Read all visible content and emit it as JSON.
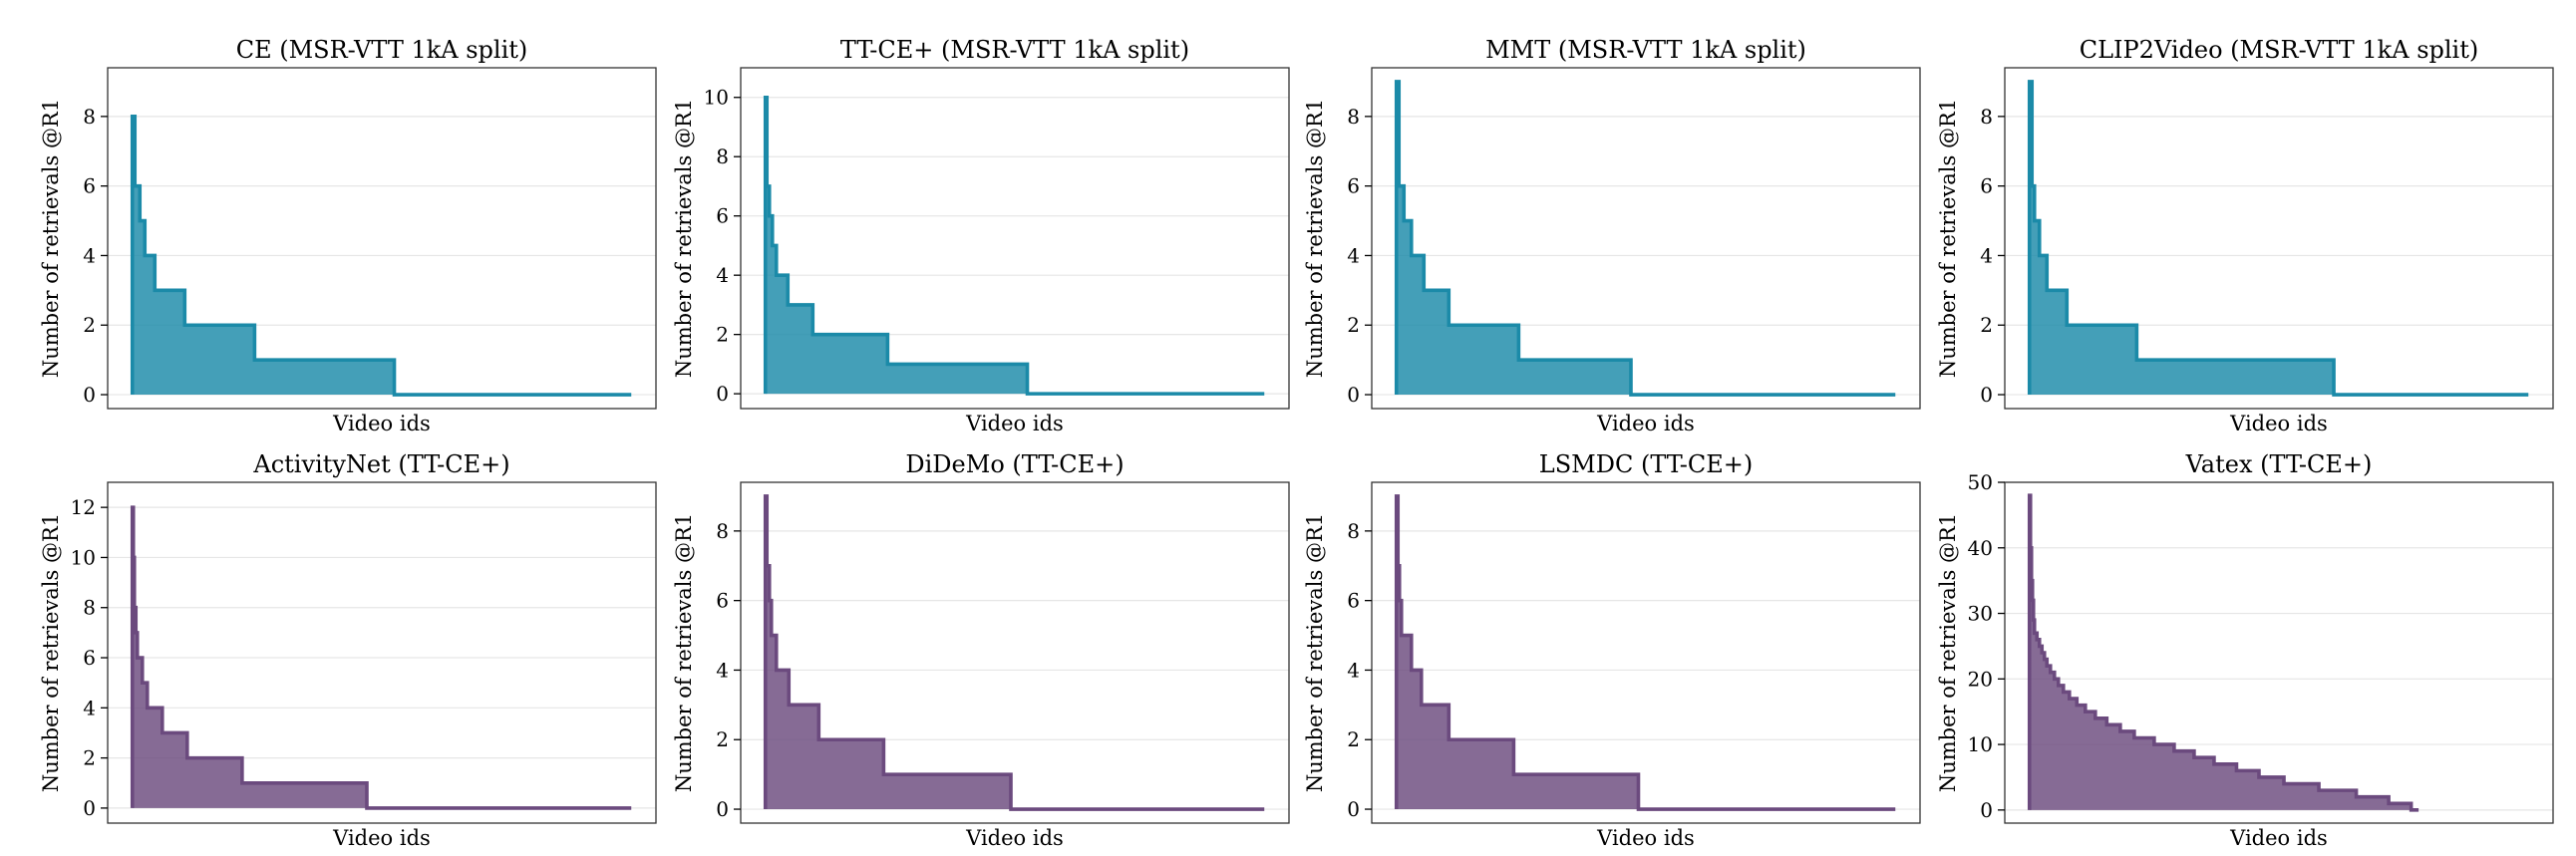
{
  "colors": {
    "teal": "#1b8aa8",
    "purple": "#6b4a7e"
  },
  "chart_data": [
    {
      "type": "area",
      "title": "CE (MSR-VTT 1kA split)",
      "xlabel": "Video ids",
      "ylabel": "Number of retrievals @R1",
      "xlim": [
        0,
        1000
      ],
      "ylim": [
        -0.4,
        9.4
      ],
      "yticks": [
        0,
        2,
        4,
        6,
        8
      ],
      "color": "teal",
      "steps": [
        [
          0,
          8
        ],
        [
          5,
          6
        ],
        [
          15,
          5
        ],
        [
          25,
          4
        ],
        [
          45,
          3
        ],
        [
          105,
          2
        ],
        [
          245,
          1
        ],
        [
          525,
          0
        ],
        [
          1000,
          0
        ]
      ]
    },
    {
      "type": "area",
      "title": "TT-CE+ (MSR-VTT 1kA split)",
      "xlabel": "Video ids",
      "ylabel": "Number of retrievals @R1",
      "xlim": [
        0,
        1000
      ],
      "ylim": [
        -0.5,
        11
      ],
      "yticks": [
        0,
        2,
        4,
        6,
        8,
        10
      ],
      "color": "teal",
      "steps": [
        [
          0,
          10
        ],
        [
          3,
          7
        ],
        [
          8,
          6
        ],
        [
          14,
          5
        ],
        [
          22,
          4
        ],
        [
          45,
          3
        ],
        [
          95,
          2
        ],
        [
          245,
          1
        ],
        [
          525,
          0
        ],
        [
          1000,
          0
        ]
      ]
    },
    {
      "type": "area",
      "title": "MMT (MSR-VTT 1kA split)",
      "xlabel": "Video ids",
      "ylabel": "Number of retrievals @R1",
      "xlim": [
        0,
        1000
      ],
      "ylim": [
        -0.4,
        9.4
      ],
      "yticks": [
        0,
        2,
        4,
        6,
        8
      ],
      "color": "teal",
      "steps": [
        [
          0,
          9
        ],
        [
          5,
          6
        ],
        [
          15,
          5
        ],
        [
          30,
          4
        ],
        [
          55,
          3
        ],
        [
          105,
          2
        ],
        [
          245,
          1
        ],
        [
          470,
          0
        ],
        [
          1000,
          0
        ]
      ]
    },
    {
      "type": "area",
      "title": "CLIP2Video (MSR-VTT 1kA split)",
      "xlabel": "Video ids",
      "ylabel": "Number of retrievals @R1",
      "xlim": [
        0,
        1000
      ],
      "ylim": [
        -0.4,
        9.4
      ],
      "yticks": [
        0,
        2,
        4,
        6,
        8
      ],
      "color": "teal",
      "steps": [
        [
          0,
          9
        ],
        [
          5,
          6
        ],
        [
          10,
          5
        ],
        [
          20,
          4
        ],
        [
          35,
          3
        ],
        [
          75,
          2
        ],
        [
          215,
          1
        ],
        [
          610,
          0
        ],
        [
          1000,
          0
        ]
      ]
    },
    {
      "type": "area",
      "title": "ActivityNet (TT-CE+)",
      "xlabel": "Video ids",
      "ylabel": "Number of retrievals @R1",
      "xlim": [
        0,
        1000
      ],
      "ylim": [
        -0.6,
        13
      ],
      "yticks": [
        0,
        2,
        4,
        6,
        8,
        10,
        12
      ],
      "color": "purple",
      "steps": [
        [
          0,
          12
        ],
        [
          2,
          10
        ],
        [
          4,
          8
        ],
        [
          7,
          7
        ],
        [
          10,
          6
        ],
        [
          20,
          5
        ],
        [
          30,
          4
        ],
        [
          60,
          3
        ],
        [
          110,
          2
        ],
        [
          220,
          1
        ],
        [
          470,
          0
        ],
        [
          1000,
          0
        ]
      ]
    },
    {
      "type": "area",
      "title": "DiDeMo (TT-CE+)",
      "xlabel": "Video ids",
      "ylabel": "Number of retrievals @R1",
      "xlim": [
        0,
        1000
      ],
      "ylim": [
        -0.4,
        9.4
      ],
      "yticks": [
        0,
        2,
        4,
        6,
        8
      ],
      "color": "purple",
      "steps": [
        [
          0,
          9
        ],
        [
          3,
          7
        ],
        [
          8,
          6
        ],
        [
          12,
          5
        ],
        [
          22,
          4
        ],
        [
          47,
          3
        ],
        [
          107,
          2
        ],
        [
          237,
          1
        ],
        [
          492,
          0
        ],
        [
          1000,
          0
        ]
      ]
    },
    {
      "type": "area",
      "title": "LSMDC (TT-CE+)",
      "xlabel": "Video ids",
      "ylabel": "Number of retrievals @R1",
      "xlim": [
        0,
        1000
      ],
      "ylim": [
        -0.4,
        9.4
      ],
      "yticks": [
        0,
        2,
        4,
        6,
        8
      ],
      "color": "purple",
      "steps": [
        [
          0,
          9
        ],
        [
          3,
          7
        ],
        [
          6,
          6
        ],
        [
          10,
          5
        ],
        [
          30,
          4
        ],
        [
          50,
          3
        ],
        [
          105,
          2
        ],
        [
          235,
          1
        ],
        [
          485,
          0
        ],
        [
          1000,
          0
        ]
      ]
    },
    {
      "type": "area",
      "title": "Vatex (TT-CE+)",
      "xlabel": "Video ids",
      "ylabel": "Number of retrievals @R1",
      "xlim": [
        0,
        1000
      ],
      "ylim": [
        -2,
        50
      ],
      "yticks": [
        0,
        10,
        20,
        30,
        40,
        50
      ],
      "color": "purple",
      "steps": [
        [
          0,
          48
        ],
        [
          2,
          40
        ],
        [
          4,
          35
        ],
        [
          6,
          32
        ],
        [
          8,
          29
        ],
        [
          10,
          27
        ],
        [
          15,
          26
        ],
        [
          20,
          25
        ],
        [
          25,
          24
        ],
        [
          30,
          23
        ],
        [
          35,
          22
        ],
        [
          42,
          21
        ],
        [
          50,
          20
        ],
        [
          58,
          19
        ],
        [
          68,
          18
        ],
        [
          80,
          17
        ],
        [
          95,
          16
        ],
        [
          112,
          15
        ],
        [
          132,
          14
        ],
        [
          155,
          13
        ],
        [
          182,
          12
        ],
        [
          210,
          11
        ],
        [
          250,
          10
        ],
        [
          290,
          9
        ],
        [
          330,
          8
        ],
        [
          370,
          7
        ],
        [
          415,
          6
        ],
        [
          460,
          5
        ],
        [
          510,
          4
        ],
        [
          580,
          3
        ],
        [
          655,
          2
        ],
        [
          720,
          1
        ],
        [
          765,
          0
        ],
        [
          780,
          0
        ]
      ]
    }
  ]
}
